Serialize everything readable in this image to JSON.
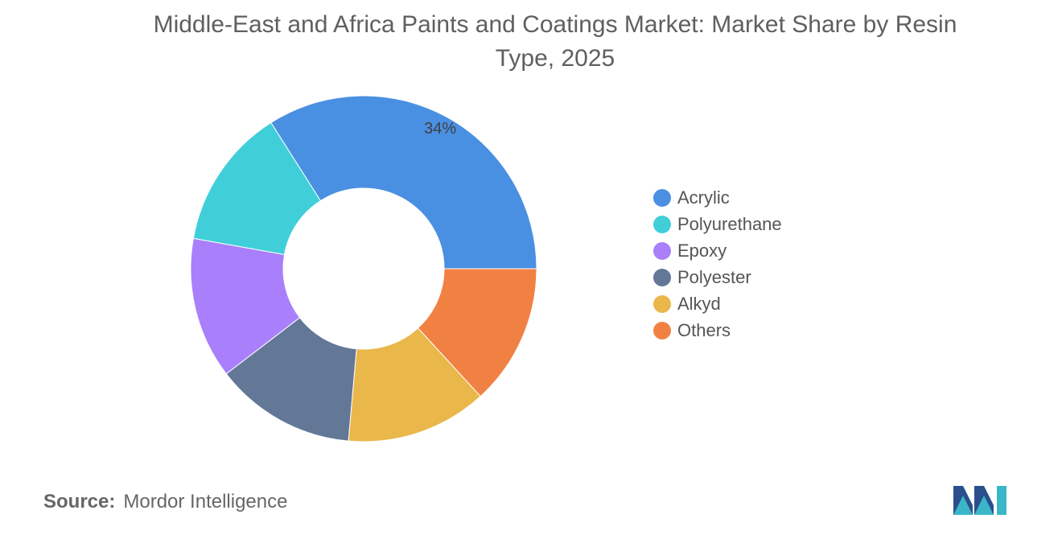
{
  "title": "Middle-East and Africa Paints and Coatings Market: Market Share by Resin Type, 2025",
  "source": {
    "label": "Source:",
    "name": "Mordor Intelligence"
  },
  "logo_icon": "mordor-intelligence-logo",
  "chart_data": {
    "type": "pie",
    "variant": "donut",
    "title": "Middle-East and Africa Paints and Coatings Market: Market Share by Resin Type, 2025",
    "legend_position": "right",
    "series": [
      {
        "name": "Acrylic",
        "value": 34,
        "color": "#4a90e2",
        "label": "34%"
      },
      {
        "name": "Polyurethane",
        "value": 13.2,
        "color": "#40cfd9",
        "label": ""
      },
      {
        "name": "Epoxy",
        "value": 13.2,
        "color": "#a97ffb",
        "label": ""
      },
      {
        "name": "Polyester",
        "value": 13.2,
        "color": "#637797",
        "label": ""
      },
      {
        "name": "Alkyd",
        "value": 13.2,
        "color": "#eab74a",
        "label": ""
      },
      {
        "name": "Others",
        "value": 13.2,
        "color": "#f18143",
        "label": ""
      }
    ]
  }
}
